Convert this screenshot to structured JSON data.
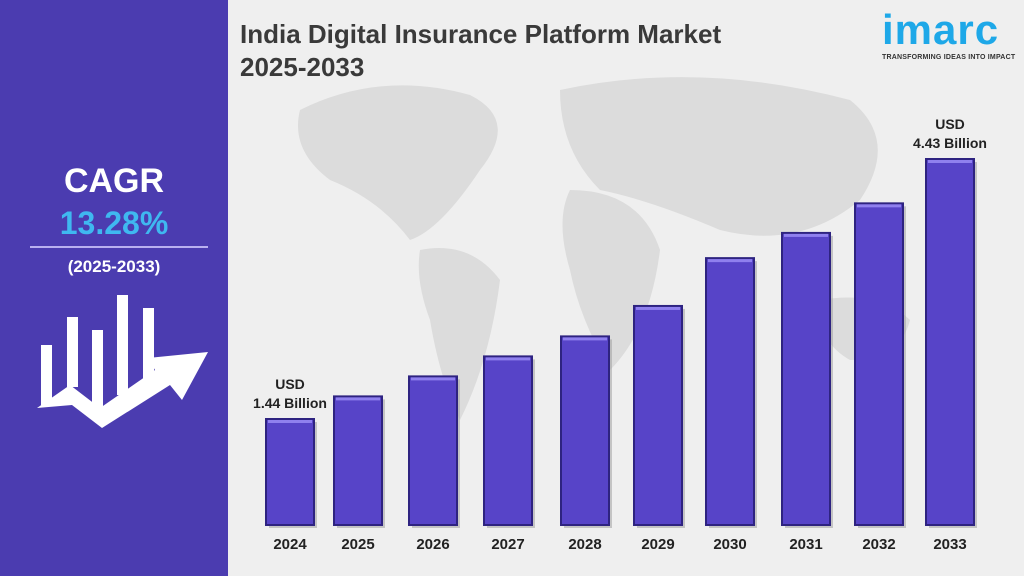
{
  "header": {
    "title_line1": "India Digital Insurance Platform Market",
    "title_line2": "2025-2033"
  },
  "logo": {
    "word": "imarc",
    "tagline": "TRANSFORMING IDEAS INTO IMPACT",
    "color": "#1ea8e8"
  },
  "sidebar": {
    "cagr_label": "CAGR",
    "cagr_value": "13.28%",
    "period": "(2025-2033)",
    "icon": "growth-chart-arrow-icon"
  },
  "colors": {
    "panel": "#4b3cb0",
    "bar": "#5744c8",
    "cagr_value": "#3fb8f0",
    "background": "#efefef"
  },
  "chart_data": {
    "type": "bar",
    "categories": [
      "2024",
      "2025",
      "2026",
      "2027",
      "2028",
      "2029",
      "2030",
      "2031",
      "2032",
      "2033"
    ],
    "values": [
      1.44,
      1.7,
      1.93,
      2.16,
      2.39,
      2.74,
      3.29,
      3.58,
      3.92,
      4.43
    ],
    "unit": "USD Billion",
    "annotations": [
      {
        "category": "2024",
        "line1": "USD",
        "line2": "1.44 Billion"
      },
      {
        "category": "2033",
        "line1": "USD",
        "line2": "4.43 Billion"
      }
    ],
    "grid": false,
    "legend": "none"
  }
}
